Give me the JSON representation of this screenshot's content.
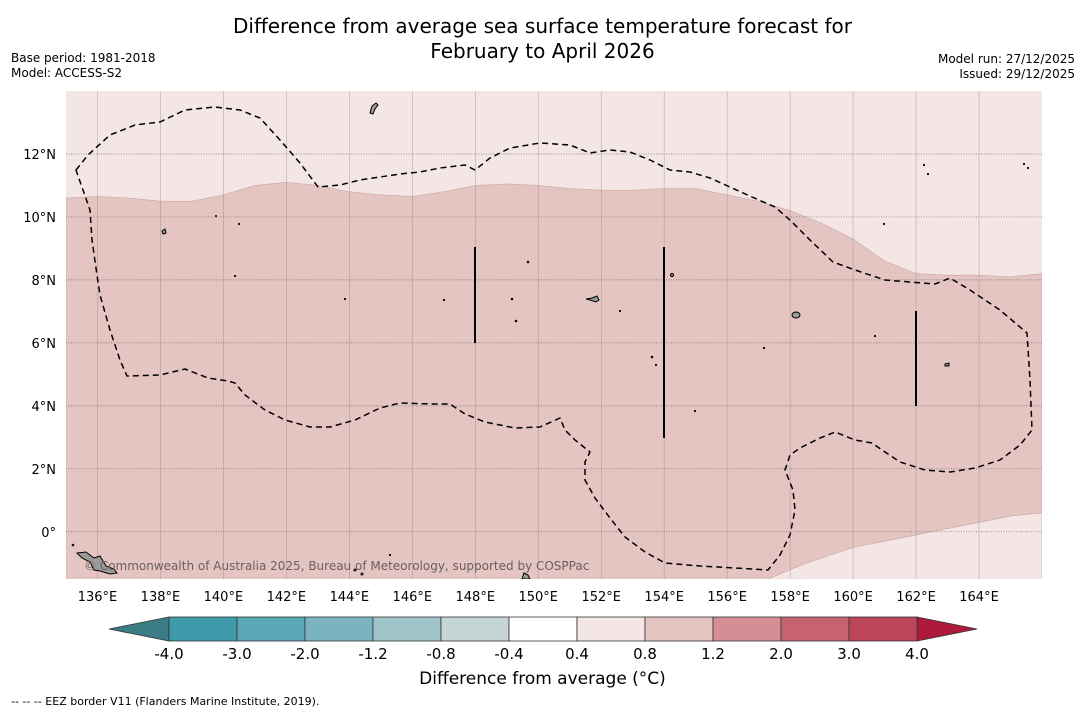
{
  "title": {
    "line1": "Difference from average sea surface temperature forecast for",
    "line2": "February to April 2026"
  },
  "meta_left": {
    "base_period": "Base period: 1981-2018",
    "model": "Model: ACCESS-S2"
  },
  "meta_right": {
    "model_run": "Model run: 27/12/2025",
    "issued": "Issued: 29/12/2025"
  },
  "copyright": "© Commonwealth of Australia 2025, Bureau of Meteorology, supported by COSPPac",
  "footnote": "--  --  -- EEZ border V11 (Flanders Marine Institute, 2019).",
  "colors": {
    "anomaly_0_4_0_8": "#f4e6e4",
    "anomaly_0_8_1_2": "#e5c5c1",
    "land": "#9a9a9a",
    "grid": "#808080",
    "eez": "#000000"
  },
  "chart_data": {
    "type": "map",
    "title": "Difference from average sea surface temperature forecast for February to April 2026",
    "lon_range": [
      135,
      166
    ],
    "lat_range": [
      -1.5,
      14
    ],
    "x_ticks": [
      "136°E",
      "138°E",
      "140°E",
      "142°E",
      "144°E",
      "146°E",
      "148°E",
      "150°E",
      "152°E",
      "154°E",
      "156°E",
      "158°E",
      "160°E",
      "162°E",
      "164°E"
    ],
    "x_tick_values": [
      136,
      138,
      140,
      142,
      144,
      146,
      148,
      150,
      152,
      154,
      156,
      158,
      160,
      162,
      164
    ],
    "y_ticks": [
      "12°N",
      "10°N",
      "8°N",
      "6°N",
      "4°N",
      "2°N",
      "0°"
    ],
    "y_tick_values": [
      12,
      10,
      8,
      6,
      4,
      2,
      0
    ],
    "anomaly_boundary_upper": [
      [
        135,
        10.6
      ],
      [
        136,
        10.65
      ],
      [
        137,
        10.6
      ],
      [
        138,
        10.5
      ],
      [
        139,
        10.5
      ],
      [
        140,
        10.7
      ],
      [
        141,
        11.0
      ],
      [
        142,
        11.1
      ],
      [
        143,
        11.0
      ],
      [
        144,
        10.8
      ],
      [
        145,
        10.7
      ],
      [
        146,
        10.65
      ],
      [
        147,
        10.8
      ],
      [
        148,
        11.0
      ],
      [
        149,
        11.05
      ],
      [
        150,
        11.0
      ],
      [
        151,
        10.9
      ],
      [
        152,
        10.85
      ],
      [
        153,
        10.85
      ],
      [
        154,
        10.9
      ],
      [
        155,
        10.9
      ],
      [
        156,
        10.7
      ],
      [
        157,
        10.5
      ],
      [
        158,
        10.2
      ],
      [
        159,
        9.8
      ],
      [
        160,
        9.3
      ],
      [
        161,
        8.6
      ],
      [
        162,
        8.2
      ],
      [
        163,
        8.15
      ],
      [
        164,
        8.15
      ],
      [
        165,
        8.1
      ],
      [
        166,
        8.2
      ]
    ],
    "anomaly_boundary_lower": [
      [
        157.3,
        -1.5
      ],
      [
        158.5,
        -1.0
      ],
      [
        160,
        -0.5
      ],
      [
        161,
        -0.3
      ],
      [
        162,
        -0.1
      ],
      [
        163,
        0.1
      ],
      [
        164,
        0.3
      ],
      [
        165,
        0.5
      ],
      [
        166,
        0.6
      ]
    ],
    "colorbar": {
      "label": "Difference from average (°C)",
      "ticks": [
        "-4.0",
        "-3.0",
        "-2.0",
        "-1.2",
        "-0.8",
        "-0.4",
        "0.4",
        "0.8",
        "1.2",
        "2.0",
        "3.0",
        "4.0"
      ],
      "colors": [
        "#3f9aa9",
        "#5aa7b6",
        "#7cb3c0",
        "#9fc5cb",
        "#c6d6d7",
        "#ffffff",
        "#f4e6e4",
        "#e5c5c1",
        "#d48f95",
        "#c7636f",
        "#bc4657"
      ],
      "under_color": "#3b7d84",
      "over_color": "#ad1a3b"
    }
  }
}
